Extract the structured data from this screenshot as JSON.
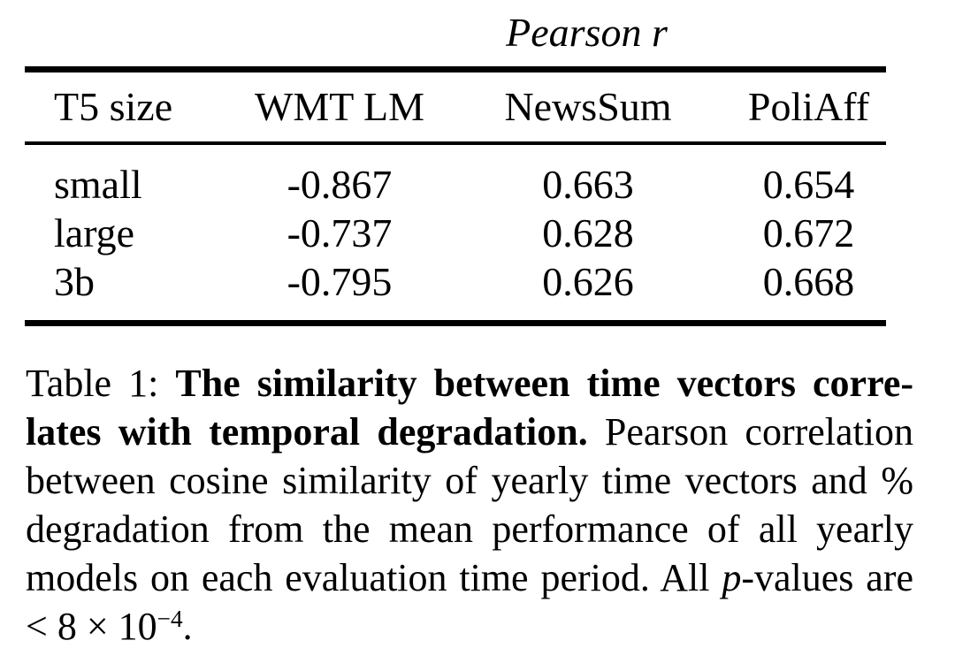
{
  "figure": {
    "table": {
      "group_header": "Pearson r",
      "columns": [
        "T5 size",
        "WMT LM",
        "NewsSum",
        "PoliAff"
      ],
      "rows": [
        {
          "size": "small",
          "wmt_lm": "-0.867",
          "newssum": "0.663",
          "poliaff": "0.654"
        },
        {
          "size": "large",
          "wmt_lm": "-0.737",
          "newssum": "0.628",
          "poliaff": "0.672"
        },
        {
          "size": "3b",
          "wmt_lm": "-0.795",
          "newssum": "0.626",
          "poliaff": "0.668"
        }
      ]
    },
    "caption": {
      "lines": [
        {
          "pre": "Table 1: ",
          "bold": "The similarity between time vectors corre-"
        },
        {
          "bold": "lates with temporal degradation.",
          "post": " Pearson correlation"
        },
        {
          "text": "between cosine similarity of yearly time vectors and %"
        },
        {
          "text": "degradation from the mean performance of all yearly"
        },
        {
          "pre": "models on each evaluation time period. All ",
          "italic": "p",
          "post": "-values are"
        },
        {
          "pre": "< 8 × 10",
          "sup": "−4",
          "post": "."
        }
      ]
    }
  },
  "colors": {
    "text": "#000000",
    "rule": "#000000",
    "background": "#ffffff"
  }
}
